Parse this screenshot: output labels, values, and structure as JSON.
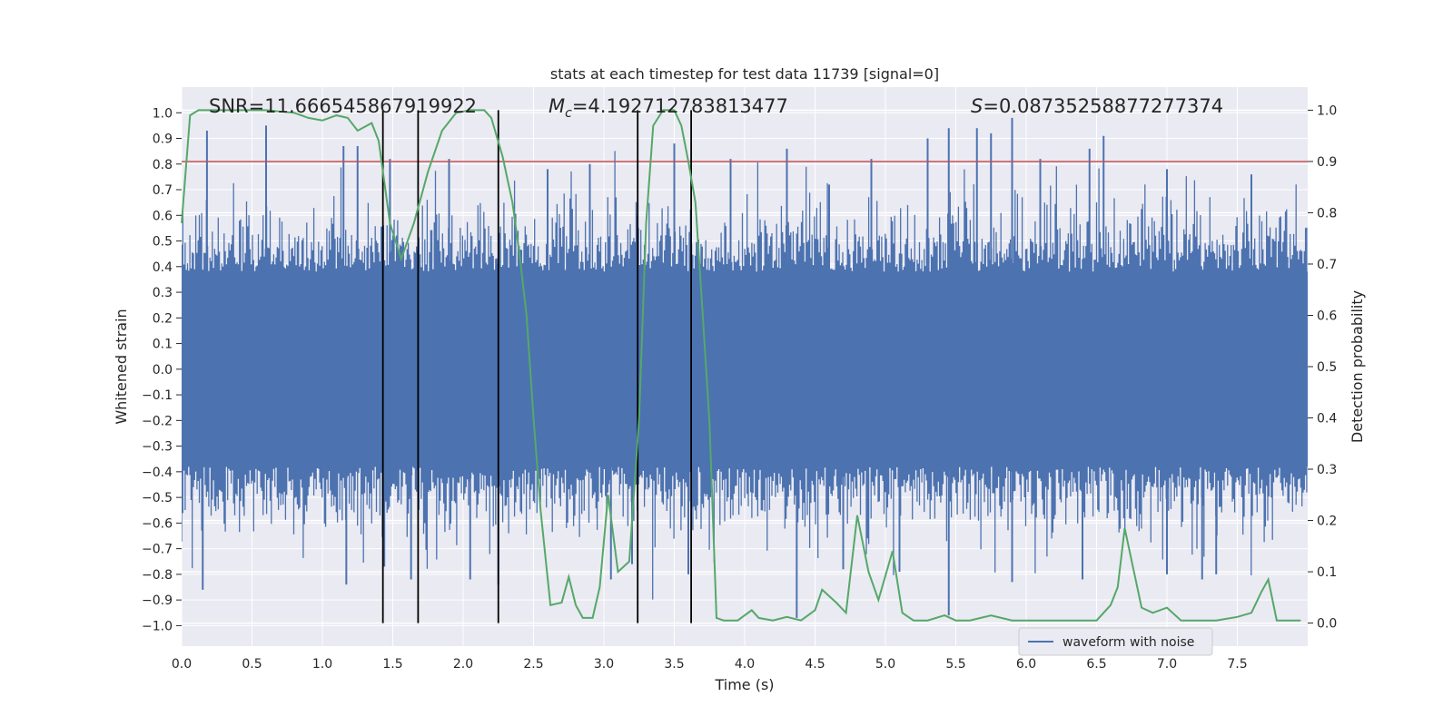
{
  "chart_data": {
    "type": "line",
    "title": "stats at each timestep for test data 11739 [signal=0]",
    "xlabel": "Time (s)",
    "ylabel_left": "Whitened strain",
    "ylabel_right": "Detection probability",
    "xlim": [
      0,
      8
    ],
    "ylim_left": [
      -1.08,
      1.1
    ],
    "ylim_right": [
      -0.045,
      1.045
    ],
    "x_ticks": [
      0.0,
      0.5,
      1.0,
      1.5,
      2.0,
      2.5,
      3.0,
      3.5,
      4.0,
      4.5,
      5.0,
      5.5,
      6.0,
      6.5,
      7.0,
      7.5
    ],
    "x_tick_labels": [
      "0.0",
      "0.5",
      "1.0",
      "1.5",
      "2.0",
      "2.5",
      "3.0",
      "3.5",
      "4.0",
      "4.5",
      "5.0",
      "5.5",
      "6.0",
      "6.5",
      "7.0",
      "7.5"
    ],
    "y_ticks_left": [
      1.0,
      0.9,
      0.8,
      0.7,
      0.6,
      0.5,
      0.4,
      0.3,
      0.2,
      0.1,
      0.0,
      -0.1,
      -0.2,
      -0.3,
      -0.4,
      -0.5,
      -0.6,
      -0.7,
      -0.8,
      -0.9,
      -1.0
    ],
    "y_tick_labels_left": [
      "1.0",
      "0.9",
      "0.8",
      "0.7",
      "0.6",
      "0.5",
      "0.4",
      "0.3",
      "0.2",
      "0.1",
      "0.0",
      "−0.1",
      "−0.2",
      "−0.3",
      "−0.4",
      "−0.5",
      "−0.6",
      "−0.7",
      "−0.8",
      "−0.9",
      "−1.0"
    ],
    "y_ticks_right": [
      1.0,
      0.9,
      0.8,
      0.7,
      0.6,
      0.5,
      0.4,
      0.3,
      0.2,
      0.1,
      0.0
    ],
    "y_tick_labels_right": [
      "1.0",
      "0.9",
      "0.8",
      "0.7",
      "0.6",
      "0.5",
      "0.4",
      "0.3",
      "0.2",
      "0.1",
      "0.0"
    ],
    "grid": true,
    "series": [
      {
        "name": "waveform with noise",
        "axis": "left",
        "color": "#4c72b0",
        "style": "dense-noise",
        "core_amplitude": 0.38,
        "peaks_positive": [
          [
            0.18,
            0.93
          ],
          [
            0.6,
            0.95
          ],
          [
            1.15,
            0.87
          ],
          [
            1.25,
            0.87
          ],
          [
            1.48,
            0.82
          ],
          [
            1.9,
            0.82
          ],
          [
            2.6,
            0.78
          ],
          [
            2.9,
            0.8
          ],
          [
            3.5,
            0.88
          ],
          [
            3.9,
            0.82
          ],
          [
            4.3,
            0.86
          ],
          [
            4.6,
            0.72
          ],
          [
            4.9,
            0.82
          ],
          [
            5.3,
            0.9
          ],
          [
            5.45,
            0.94
          ],
          [
            5.65,
            0.94
          ],
          [
            5.75,
            0.92
          ],
          [
            5.9,
            0.98
          ],
          [
            6.1,
            0.82
          ],
          [
            6.45,
            0.86
          ],
          [
            6.55,
            0.91
          ],
          [
            7.0,
            0.78
          ],
          [
            7.6,
            0.76
          ]
        ],
        "peaks_negative": [
          [
            0.15,
            -0.86
          ],
          [
            1.17,
            -0.84
          ],
          [
            1.44,
            -0.77
          ],
          [
            1.63,
            -0.82
          ],
          [
            2.05,
            -0.82
          ],
          [
            2.25,
            -0.84
          ],
          [
            3.05,
            -0.82
          ],
          [
            3.2,
            -0.76
          ],
          [
            3.6,
            -0.8
          ],
          [
            4.37,
            -0.97
          ],
          [
            4.7,
            -0.78
          ],
          [
            5.1,
            -0.79
          ],
          [
            5.45,
            -0.96
          ],
          [
            5.9,
            -0.83
          ],
          [
            6.4,
            -0.82
          ],
          [
            7.0,
            -0.8
          ],
          [
            7.25,
            -0.82
          ],
          [
            7.35,
            -0.8
          ]
        ]
      },
      {
        "name": "detection probability",
        "axis": "right",
        "color": "#55a868",
        "x": [
          0.0,
          0.06,
          0.12,
          0.3,
          0.6,
          0.8,
          0.9,
          1.0,
          1.1,
          1.18,
          1.25,
          1.35,
          1.4,
          1.48,
          1.56,
          1.65,
          1.75,
          1.85,
          1.95,
          2.05,
          2.15,
          2.2,
          2.28,
          2.35,
          2.4,
          2.45,
          2.5,
          2.55,
          2.62,
          2.7,
          2.75,
          2.8,
          2.85,
          2.92,
          2.97,
          3.03,
          3.1,
          3.18,
          3.25,
          3.3,
          3.35,
          3.42,
          3.5,
          3.55,
          3.6,
          3.65,
          3.7,
          3.75,
          3.8,
          3.85,
          3.95,
          4.0,
          4.05,
          4.1,
          4.2,
          4.3,
          4.4,
          4.5,
          4.55,
          4.65,
          4.72,
          4.8,
          4.88,
          4.95,
          5.05,
          5.12,
          5.2,
          5.3,
          5.42,
          5.5,
          5.6,
          5.75,
          5.9,
          6.1,
          6.3,
          6.5,
          6.6,
          6.65,
          6.7,
          6.75,
          6.82,
          6.9,
          7.0,
          7.1,
          7.2,
          7.35,
          7.5,
          7.6,
          7.67,
          7.72,
          7.78,
          7.85,
          7.95
        ],
        "y": [
          0.78,
          0.99,
          1.0,
          1.0,
          1.0,
          0.995,
          0.985,
          0.98,
          0.99,
          0.985,
          0.96,
          0.975,
          0.94,
          0.78,
          0.71,
          0.78,
          0.88,
          0.96,
          0.995,
          1.0,
          1.0,
          0.985,
          0.91,
          0.82,
          0.72,
          0.6,
          0.4,
          0.22,
          0.035,
          0.04,
          0.09,
          0.035,
          0.01,
          0.01,
          0.07,
          0.25,
          0.1,
          0.12,
          0.4,
          0.78,
          0.97,
          1.0,
          1.0,
          0.97,
          0.9,
          0.82,
          0.61,
          0.39,
          0.01,
          0.005,
          0.005,
          0.015,
          0.025,
          0.01,
          0.005,
          0.012,
          0.005,
          0.025,
          0.065,
          0.04,
          0.02,
          0.21,
          0.1,
          0.045,
          0.14,
          0.02,
          0.005,
          0.005,
          0.015,
          0.005,
          0.005,
          0.015,
          0.005,
          0.005,
          0.005,
          0.005,
          0.035,
          0.07,
          0.185,
          0.12,
          0.03,
          0.02,
          0.03,
          0.005,
          0.005,
          0.005,
          0.012,
          0.02,
          0.06,
          0.085,
          0.005,
          0.005,
          0.005
        ]
      }
    ],
    "threshold_line": {
      "axis": "right",
      "value": 0.9,
      "color": "#c44e52"
    },
    "event_lines": {
      "color": "#000000",
      "x": [
        1.43,
        1.68,
        2.25,
        3.24,
        3.62
      ],
      "y_range_right": [
        0.0,
        1.0
      ]
    },
    "annotations": [
      "SNR=11.666545867919922",
      "M_c=4.192712783813477",
      "S=0.08735258877277374"
    ],
    "legend": {
      "entries": [
        "waveform with noise"
      ],
      "location": "lower-right"
    }
  }
}
